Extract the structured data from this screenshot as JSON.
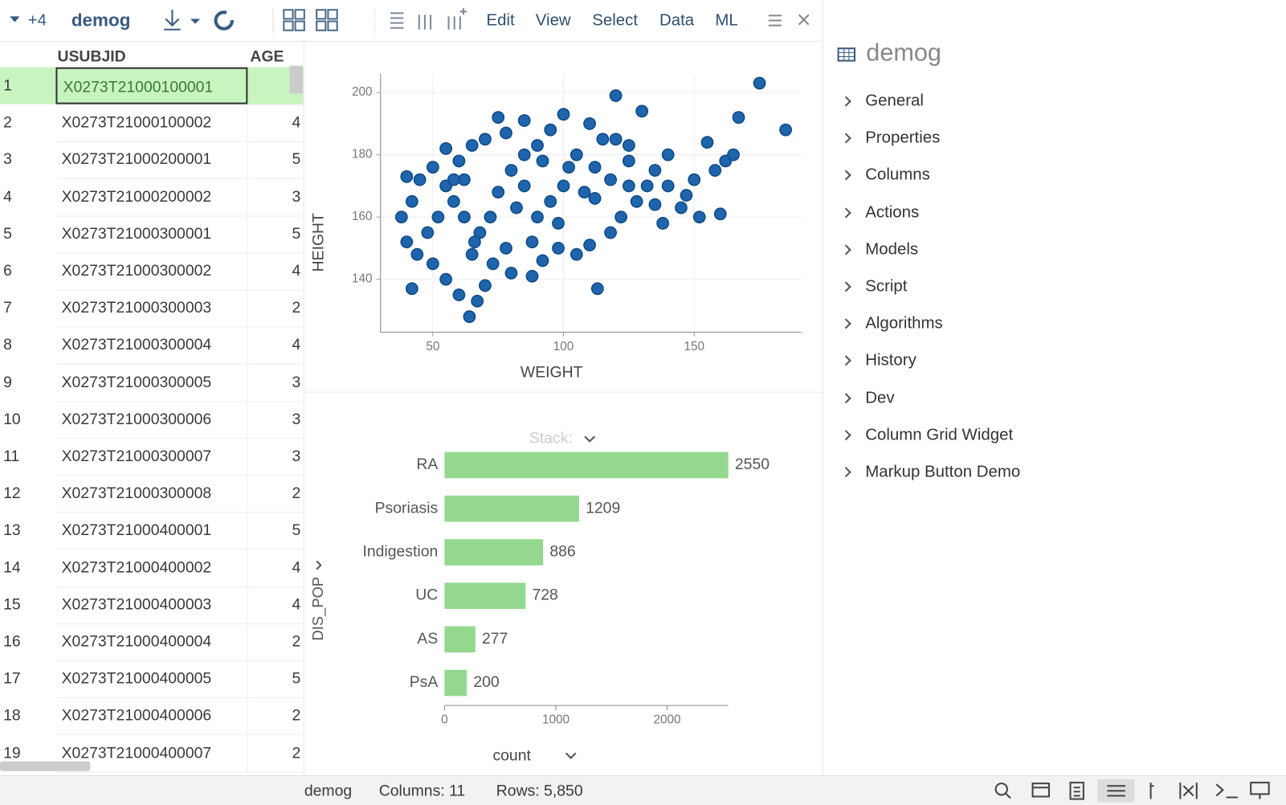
{
  "toolbar": {
    "count": "+4",
    "table_name": "demog",
    "menus": [
      "Edit",
      "View",
      "Select",
      "Data",
      "ML"
    ]
  },
  "table": {
    "headers": [
      "USUBJID",
      "AGE"
    ],
    "rows": [
      {
        "n": "1",
        "id": "X0273T21000100001"
      },
      {
        "n": "2",
        "id": "X0273T21000100002",
        "age": "4"
      },
      {
        "n": "3",
        "id": "X0273T21000200001",
        "age": "5"
      },
      {
        "n": "4",
        "id": "X0273T21000200002",
        "age": "3"
      },
      {
        "n": "5",
        "id": "X0273T21000300001",
        "age": "5"
      },
      {
        "n": "6",
        "id": "X0273T21000300002",
        "age": "4"
      },
      {
        "n": "7",
        "id": "X0273T21000300003",
        "age": "2"
      },
      {
        "n": "8",
        "id": "X0273T21000300004",
        "age": "4"
      },
      {
        "n": "9",
        "id": "X0273T21000300005",
        "age": "3"
      },
      {
        "n": "10",
        "id": "X0273T21000300006",
        "age": "3"
      },
      {
        "n": "11",
        "id": "X0273T21000300007",
        "age": "3"
      },
      {
        "n": "12",
        "id": "X0273T21000300008",
        "age": "2"
      },
      {
        "n": "13",
        "id": "X0273T21000400001",
        "age": "5"
      },
      {
        "n": "14",
        "id": "X0273T21000400002",
        "age": "4"
      },
      {
        "n": "15",
        "id": "X0273T21000400003",
        "age": "4"
      },
      {
        "n": "16",
        "id": "X0273T21000400004",
        "age": "2"
      },
      {
        "n": "17",
        "id": "X0273T21000400005",
        "age": "5"
      },
      {
        "n": "18",
        "id": "X0273T21000400006",
        "age": "2"
      },
      {
        "n": "19",
        "id": "X0273T21000400007",
        "age": "2"
      }
    ]
  },
  "chart_data": [
    {
      "type": "scatter",
      "x_label": "WEIGHT",
      "y_label": "HEIGHT",
      "color": "#1f65ad",
      "grid": true,
      "xlim": [
        30,
        191
      ],
      "ylim": [
        123,
        206
      ],
      "xticks": [
        50,
        100,
        150
      ],
      "yticks": [
        140,
        160,
        180,
        200
      ],
      "x": [
        175,
        185,
        167,
        130,
        120,
        150,
        160,
        147,
        135,
        140,
        155,
        162,
        145,
        138,
        125,
        115,
        110,
        100,
        95,
        85,
        75,
        70,
        65,
        60,
        55,
        50,
        45,
        40,
        42,
        38,
        40,
        44,
        42,
        50,
        55,
        60,
        64,
        67,
        70,
        73,
        80,
        88,
        92,
        98,
        105,
        113,
        110,
        118,
        122,
        128,
        132,
        125,
        118,
        108,
        100,
        95,
        90,
        85,
        80,
        75,
        72,
        68,
        62,
        58,
        52,
        48,
        55,
        62,
        85,
        92,
        105,
        112,
        98,
        88,
        78,
        65,
        120,
        140,
        152,
        158,
        165,
        78,
        82,
        90,
        102,
        58,
        66,
        112,
        125,
        135
      ],
      "y": [
        203,
        188,
        192,
        194,
        199,
        172,
        161,
        167,
        175,
        180,
        184,
        178,
        163,
        158,
        170,
        185,
        190,
        193,
        188,
        191,
        192,
        185,
        183,
        178,
        182,
        176,
        172,
        173,
        165,
        160,
        152,
        148,
        137,
        145,
        140,
        135,
        128,
        133,
        138,
        145,
        142,
        141,
        146,
        150,
        148,
        137,
        151,
        155,
        160,
        165,
        170,
        178,
        172,
        168,
        170,
        165,
        160,
        170,
        175,
        168,
        160,
        155,
        160,
        165,
        160,
        155,
        170,
        172,
        180,
        178,
        180,
        176,
        158,
        152,
        150,
        148,
        185,
        170,
        160,
        175,
        180,
        187,
        163,
        183,
        176,
        172,
        152,
        166,
        183,
        164
      ]
    },
    {
      "type": "bar",
      "orientation": "horizontal",
      "x_label": "count",
      "y_label": "DIS_POP",
      "stack_label": "Stack:",
      "color": "#94d890",
      "categories": [
        "RA",
        "Psoriasis",
        "Indigestion",
        "UC",
        "AS",
        "PsA"
      ],
      "values": [
        2550,
        1209,
        886,
        728,
        277,
        200
      ],
      "xlim": [
        0,
        2550
      ],
      "xticks": [
        0,
        1000,
        2000
      ]
    }
  ],
  "panel": {
    "title": "demog",
    "items": [
      "General",
      "Properties",
      "Columns",
      "Actions",
      "Models",
      "Script",
      "Algorithms",
      "History",
      "Dev",
      "Column Grid Widget",
      "Markup Button Demo"
    ]
  },
  "status": {
    "table": "demog",
    "columns": "Columns: 11",
    "rows": "Rows: 5,850"
  }
}
